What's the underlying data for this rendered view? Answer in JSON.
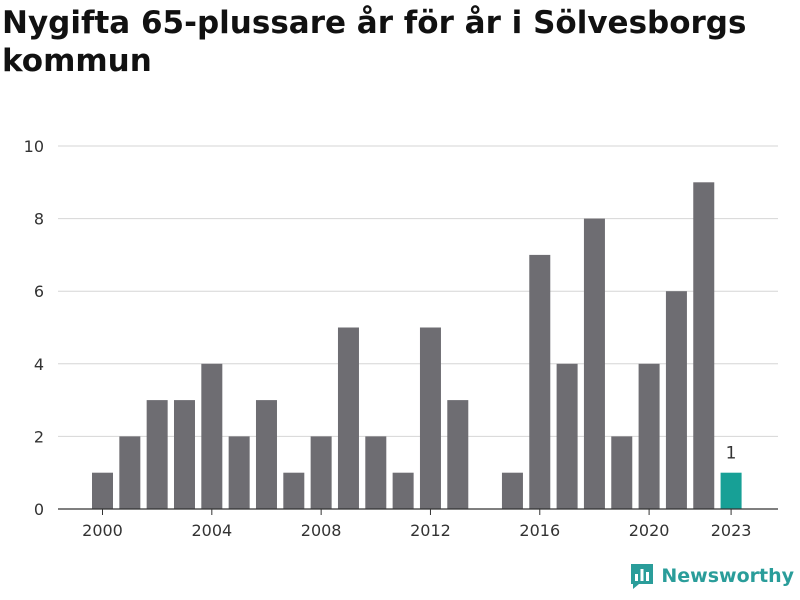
{
  "chart_data": {
    "type": "bar",
    "title": "Nygifta 65-plussare år för år i Sölvesborgs kommun",
    "categories": [
      "2000",
      "2001",
      "2002",
      "2003",
      "2004",
      "2005",
      "2006",
      "2007",
      "2008",
      "2009",
      "2010",
      "2011",
      "2012",
      "2013",
      "2014",
      "2015",
      "2016",
      "2017",
      "2018",
      "2019",
      "2020",
      "2021",
      "2022",
      "2023"
    ],
    "values": [
      1,
      2,
      3,
      3,
      4,
      2,
      3,
      1,
      2,
      5,
      2,
      1,
      5,
      3,
      0,
      1,
      7,
      4,
      8,
      2,
      4,
      6,
      9,
      1
    ],
    "x_tick_labels": [
      "2000",
      "2004",
      "2008",
      "2012",
      "2016",
      "2020",
      "2023"
    ],
    "y_ticks": [
      0,
      2,
      4,
      6,
      8,
      10
    ],
    "ylim": [
      0,
      10
    ],
    "highlight_category": "2023",
    "highlight_label": "1",
    "bar_color": "#6e6d72",
    "highlight_color": "#17a096",
    "grid": true
  },
  "brand": {
    "name": "Newsworthy",
    "logo_icon": "newsworthy-chart-icon",
    "color": "#2a9d9a"
  }
}
